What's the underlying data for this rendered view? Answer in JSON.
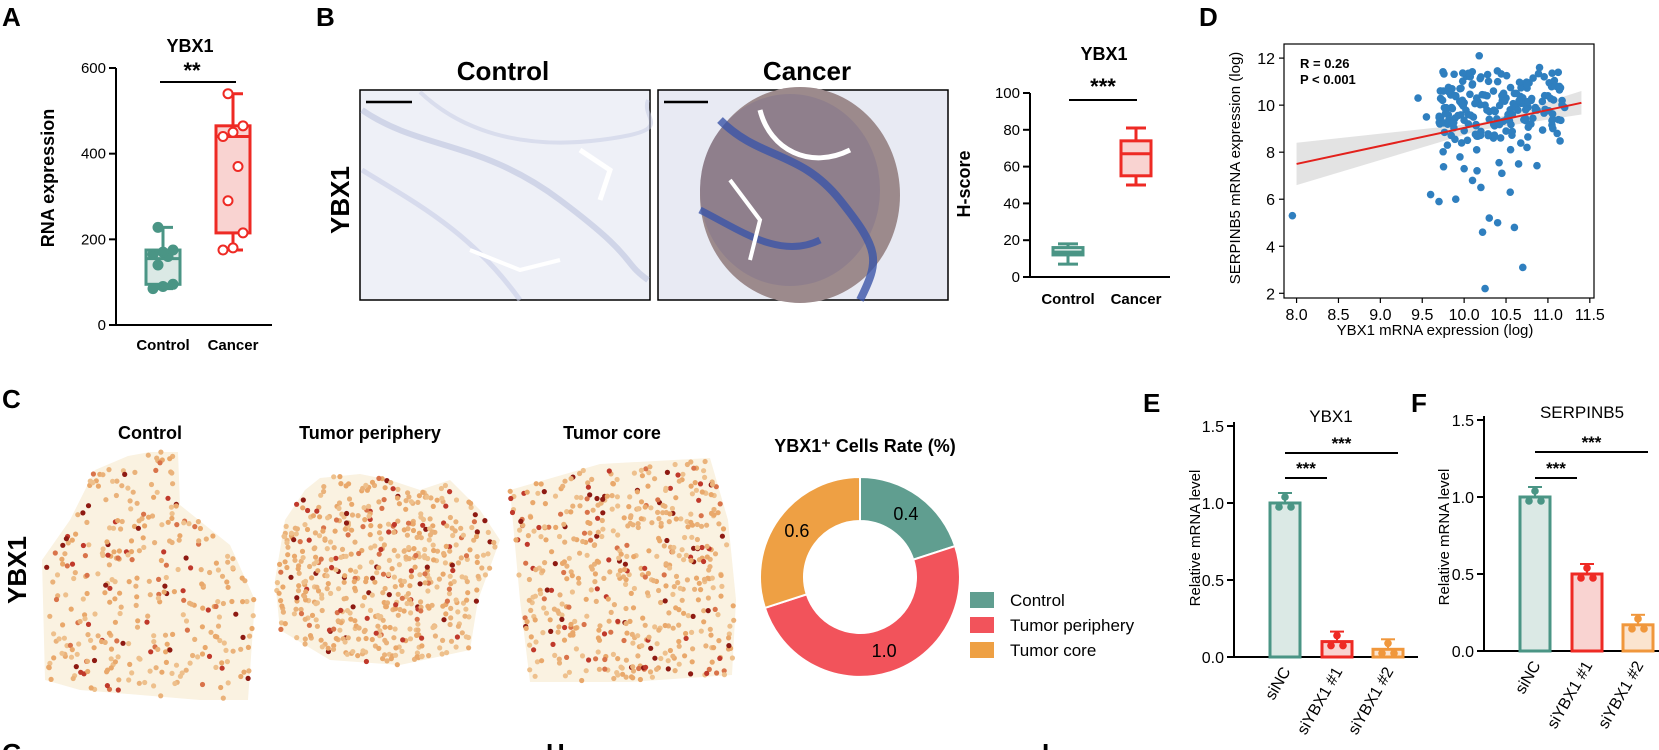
{
  "panels": {
    "A": {
      "letter": "A",
      "title": "YBX1",
      "ylabel": "RNA expression",
      "significance": "**",
      "yticks": [
        "0",
        "200",
        "400",
        "600"
      ],
      "ylim": [
        0,
        600
      ],
      "categories": [
        "Control",
        "Cancer"
      ],
      "colors": [
        "#4a9585",
        "#ee2a24"
      ],
      "boxes": [
        {
          "name": "Control",
          "min": 85,
          "q1": 95,
          "median": 155,
          "q3": 175,
          "max": 228,
          "points": [
            85,
            90,
            95,
            140,
            160,
            165,
            170,
            175,
            228
          ]
        },
        {
          "name": "Cancer",
          "min": 175,
          "q1": 215,
          "median": 440,
          "q3": 465,
          "max": 540,
          "points": [
            175,
            180,
            215,
            290,
            370,
            440,
            450,
            465,
            540
          ]
        }
      ]
    },
    "B": {
      "letter": "B",
      "image_titles": [
        "Control",
        "Cancer"
      ],
      "row_label": "YBX1",
      "chart_title": "YBX1",
      "ylabel": "H-score",
      "significance": "***",
      "yticks": [
        "0",
        "20",
        "40",
        "60",
        "80",
        "100"
      ],
      "ylim": [
        0,
        100
      ],
      "categories": [
        "Control",
        "Cancer"
      ],
      "colors": [
        "#4a9585",
        "#ee2a24"
      ],
      "boxes": [
        {
          "name": "Control",
          "min": 7,
          "q1": 12,
          "median": 13.5,
          "q3": 16,
          "max": 18
        },
        {
          "name": "Cancer",
          "min": 50,
          "q1": 55,
          "median": 67,
          "q3": 74,
          "max": 81
        }
      ]
    },
    "C": {
      "letter": "C",
      "section_titles": [
        "Control",
        "Tumor periphery",
        "Tumor core"
      ],
      "row_label": "YBX1",
      "donut_title": "YBX1⁺ Cells Rate (%)",
      "donut": [
        {
          "name": "Control",
          "value": 0.4,
          "label": "0.4",
          "color": "#609e90"
        },
        {
          "name": "Tumor periphery",
          "value": 1.0,
          "label": "1.0",
          "color": "#f2535b"
        },
        {
          "name": "Tumor core",
          "value": 0.6,
          "label": "0.6",
          "color": "#eea044"
        }
      ]
    },
    "D": {
      "letter": "D",
      "xlabel": "YBX1 mRNA expression (log)",
      "ylabel": "SERPINB5 mRNA expression (log)",
      "r_text": "R = 0.26",
      "p_text": "P < 0.001",
      "xticks": [
        "8.0",
        "8.5",
        "9.0",
        "9.5",
        "10.0",
        "10.5",
        "11.0",
        "11.5"
      ],
      "yticks": [
        "2",
        "4",
        "6",
        "8",
        "10",
        "12"
      ],
      "xlim": [
        7.85,
        11.55
      ],
      "ylim": [
        1.8,
        12.6
      ],
      "point_color": "#2f7fbf",
      "line_color": "#e3211c",
      "fit": {
        "x0": 8.0,
        "y0": 7.5,
        "x1": 11.4,
        "y1": 10.1
      }
    },
    "E": {
      "letter": "E",
      "title": "YBX1",
      "ylabel": "Relative mRNA level",
      "categories": [
        "siNC",
        "siYBX1 #1",
        "siYBX1 #2"
      ],
      "values": [
        1.0,
        0.1,
        0.05
      ],
      "yticks": [
        "0.0",
        "0.5",
        "1.0",
        "1.5"
      ],
      "ylim": [
        0,
        1.5
      ],
      "colors": [
        "#4a9585",
        "#ee2a24",
        "#f0973c"
      ],
      "fills": [
        "#dbe9e5",
        "#f9d3d1",
        "#fbe4cf"
      ],
      "significance": [
        "***",
        "***"
      ]
    },
    "F": {
      "letter": "F",
      "title": "SERPINB5",
      "ylabel": "Relative mRNA level",
      "categories": [
        "siNC",
        "siYBX1 #1",
        "siYBX1 #2"
      ],
      "values": [
        1.0,
        0.5,
        0.17
      ],
      "yticks": [
        "0.0",
        "0.5",
        "1.0",
        "1.5"
      ],
      "ylim": [
        0,
        1.5
      ],
      "colors": [
        "#4a9585",
        "#ee2a24",
        "#f0973c"
      ],
      "fills": [
        "#dbe9e5",
        "#f9d3d1",
        "#fbe4cf"
      ],
      "significance": [
        "***",
        "***"
      ]
    },
    "bottom_letters": [
      "G",
      "H",
      "I"
    ]
  },
  "chart_data": [
    {
      "type": "box",
      "title": "YBX1",
      "ylabel": "RNA expression",
      "categories": [
        "Control",
        "Cancer"
      ],
      "ylim": [
        0,
        600
      ],
      "series": [
        {
          "name": "Control",
          "min": 85,
          "q1": 95,
          "median": 155,
          "q3": 175,
          "max": 228
        },
        {
          "name": "Cancer",
          "min": 175,
          "q1": 215,
          "median": 440,
          "q3": 465,
          "max": 540
        }
      ]
    },
    {
      "type": "box",
      "title": "YBX1",
      "ylabel": "H-score",
      "categories": [
        "Control",
        "Cancer"
      ],
      "ylim": [
        0,
        100
      ],
      "series": [
        {
          "name": "Control",
          "min": 7,
          "q1": 12,
          "median": 13.5,
          "q3": 16,
          "max": 18
        },
        {
          "name": "Cancer",
          "min": 50,
          "q1": 55,
          "median": 67,
          "q3": 74,
          "max": 81
        }
      ]
    },
    {
      "type": "pie",
      "title": "YBX1⁺ Cells Rate (%)",
      "categories": [
        "Control",
        "Tumor periphery",
        "Tumor core"
      ],
      "values": [
        0.4,
        1.0,
        0.6
      ]
    },
    {
      "type": "scatter",
      "xlabel": "YBX1 mRNA expression (log)",
      "ylabel": "SERPINB5 mRNA expression (log)",
      "xlim": [
        7.85,
        11.55
      ],
      "ylim": [
        1.8,
        12.6
      ],
      "annotations": [
        "R = 0.26",
        "P < 0.001"
      ],
      "x": [
        7.95,
        9.55,
        9.75,
        9.85,
        9.9,
        9.95,
        10.0,
        10.05,
        10.1,
        10.15,
        10.2,
        10.25,
        10.3,
        10.35,
        10.4,
        10.5,
        10.55,
        10.6,
        10.7,
        10.8,
        10.85,
        10.9,
        11.0,
        11.1,
        11.2,
        9.7,
        9.8,
        10.0,
        10.2,
        10.3,
        10.45,
        10.6,
        10.25,
        10.15,
        9.9,
        10.7,
        10.05,
        10.35,
        10.5,
        9.95,
        10.1,
        10.4,
        10.55,
        10.65,
        10.75,
        9.6,
        9.45,
        10.28,
        10.18,
        10.22
      ],
      "y": [
        5.3,
        9.5,
        10.6,
        9.9,
        10.4,
        10.7,
        10.1,
        9.6,
        10.9,
        10.3,
        11.2,
        10.0,
        9.4,
        10.6,
        11.0,
        10.3,
        9.8,
        10.5,
        10.9,
        10.2,
        9.9,
        11.6,
        10.4,
        10.8,
        9.9,
        5.9,
        8.3,
        7.3,
        6.5,
        5.2,
        7.1,
        4.8,
        2.2,
        8.1,
        6.0,
        3.1,
        9.2,
        8.6,
        8.9,
        7.8,
        6.8,
        5.0,
        6.3,
        7.5,
        8.2,
        6.2,
        10.3,
        11.3,
        12.1,
        4.6
      ],
      "fit_line": {
        "x": [
          8.0,
          11.4
        ],
        "y": [
          7.5,
          10.1
        ]
      }
    },
    {
      "type": "bar",
      "title": "YBX1",
      "ylabel": "Relative mRNA level",
      "categories": [
        "siNC",
        "siYBX1 #1",
        "siYBX1 #2"
      ],
      "values": [
        1.0,
        0.1,
        0.05
      ],
      "ylim": [
        0,
        1.5
      ]
    },
    {
      "type": "bar",
      "title": "SERPINB5",
      "ylabel": "Relative mRNA level",
      "categories": [
        "siNC",
        "siYBX1 #1",
        "siYBX1 #2"
      ],
      "values": [
        1.0,
        0.5,
        0.17
      ],
      "ylim": [
        0,
        1.5
      ]
    }
  ]
}
